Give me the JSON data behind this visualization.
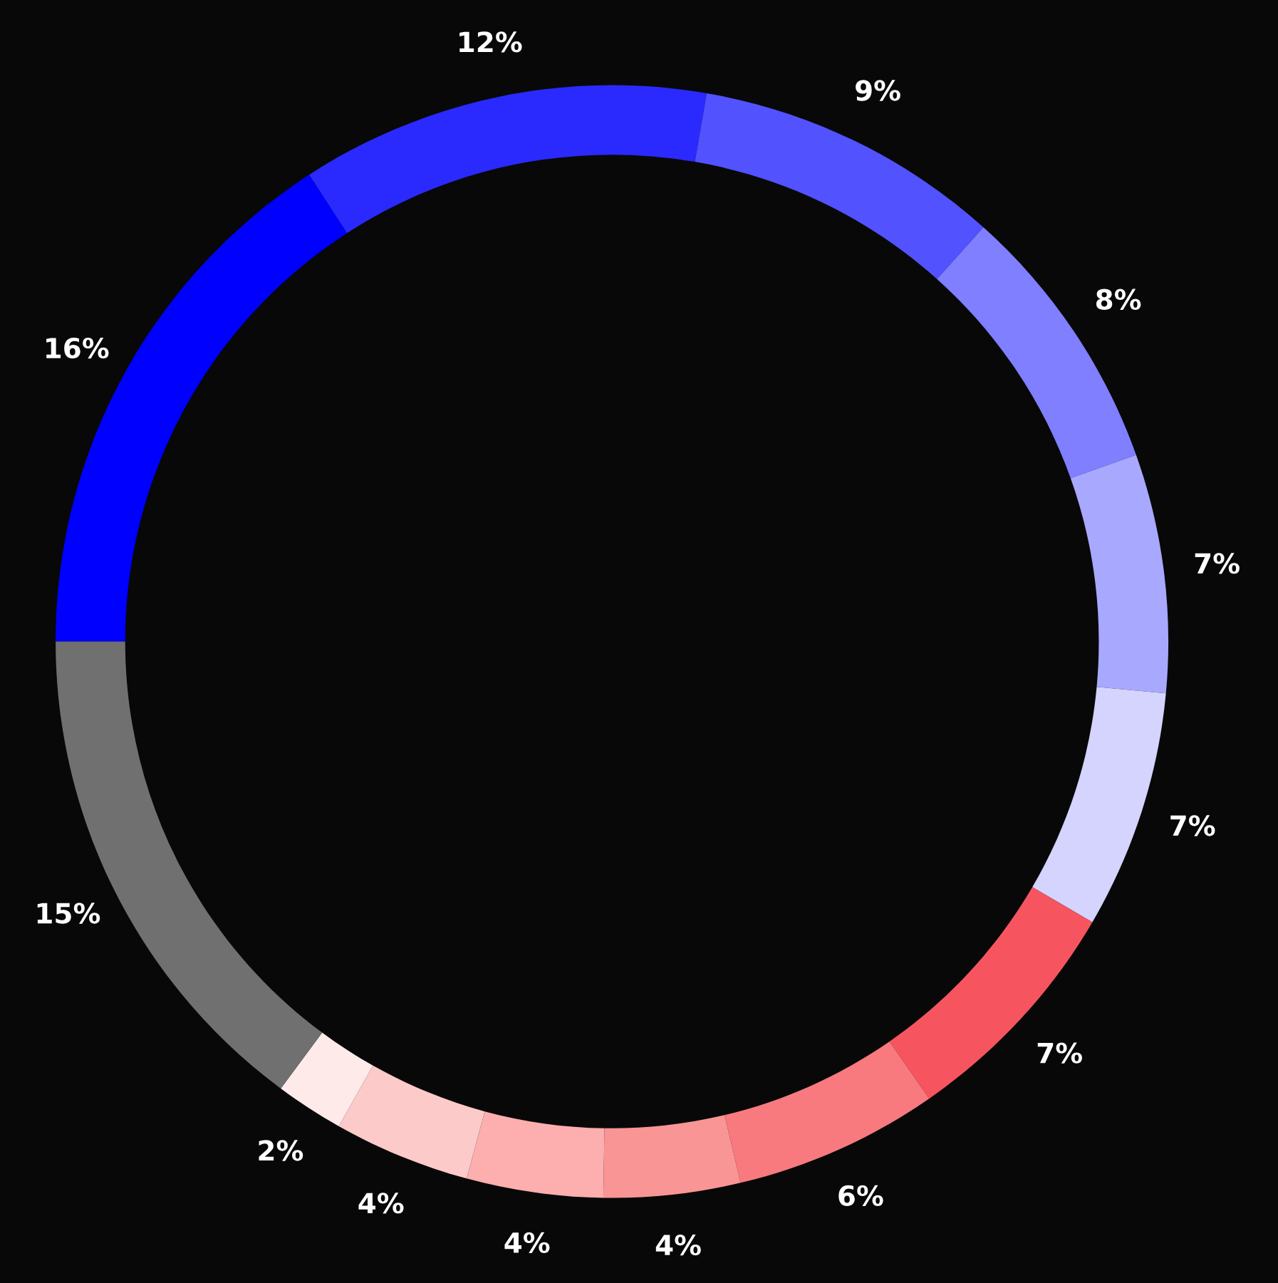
{
  "chart_data": {
    "type": "donut",
    "categories": [
      null,
      null,
      null,
      null,
      null,
      null,
      null,
      null,
      null,
      null,
      null,
      null,
      null
    ],
    "values": [
      16,
      12,
      9,
      8,
      7,
      7,
      7,
      6,
      4,
      4,
      4,
      2,
      15
    ],
    "colors": [
      "#0000ff",
      "#2a2aff",
      "#5252ff",
      "#7f7fff",
      "#a8a8ff",
      "#d4d4ff",
      "#f65560",
      "#f87a7f",
      "#fa9595",
      "#fdaeae",
      "#fdcaca",
      "#ffeaea",
      "#707070"
    ],
    "value_labels": [
      "16%",
      "12%",
      "9%",
      "8%",
      "7%",
      "7%",
      "7%",
      "6%",
      "4%",
      "4%",
      "4%",
      "2%",
      "15%"
    ],
    "legend": false
  }
}
